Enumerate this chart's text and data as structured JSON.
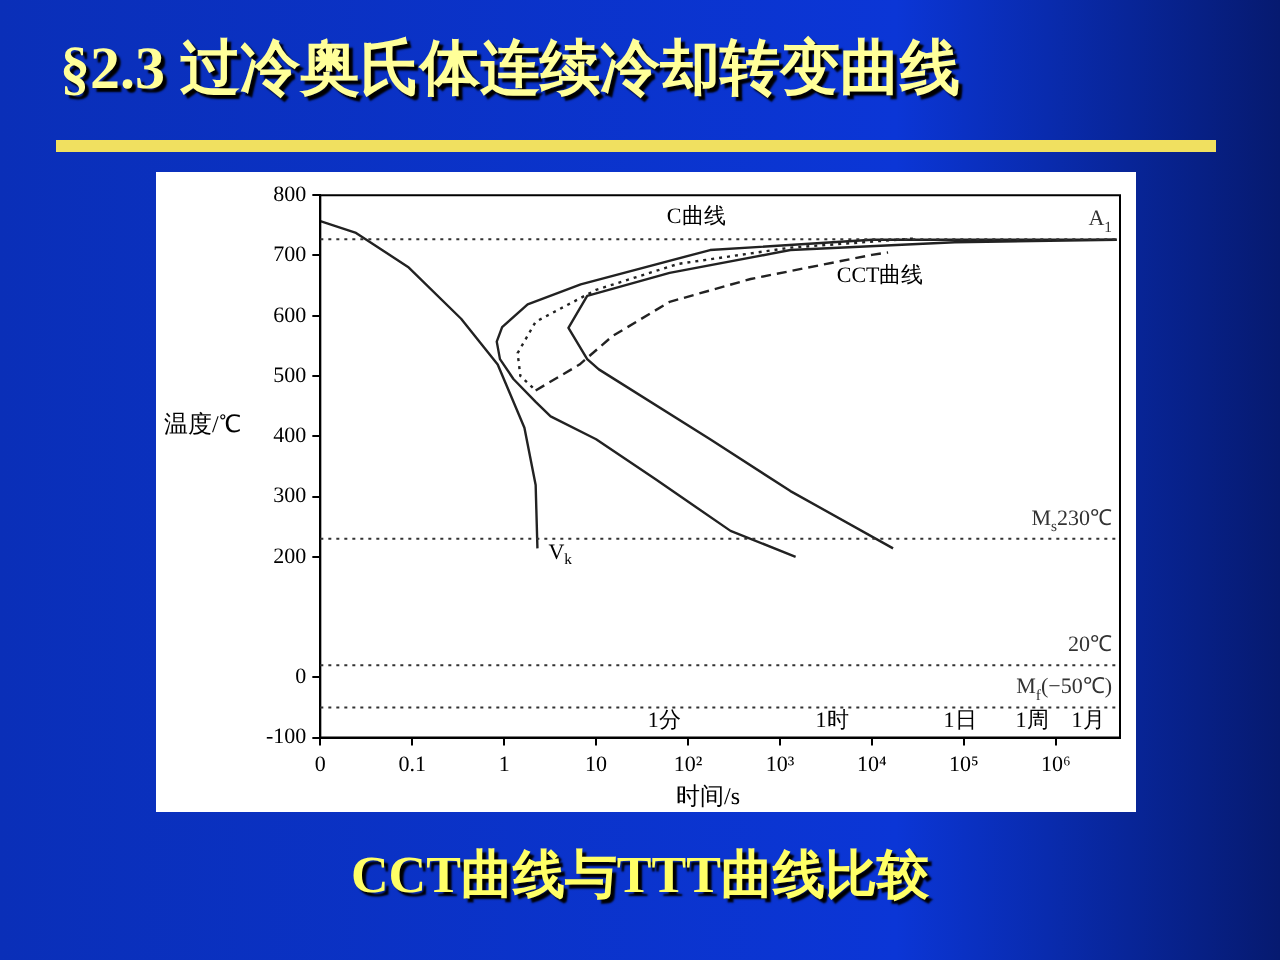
{
  "chart_data": {
    "type": "line",
    "title": "§2.3 过冷奥氏体连续冷却转变曲线",
    "subtitle": "CCT曲线与TTT曲线比较",
    "xlabel": "时间/s",
    "ylabel": "温度/℃",
    "log": "x",
    "grid": false,
    "legend": false,
    "marker": "none",
    "xlim": [
      0.01,
      5000000
    ],
    "xticks": [
      {
        "value": 0.01,
        "label": "0"
      },
      0.1,
      1,
      10,
      {
        "value": 100,
        "label": "10²"
      },
      {
        "value": 1000,
        "label": "10³"
      },
      {
        "value": 10000,
        "label": "10⁴"
      },
      {
        "value": 100000,
        "label": "10⁵"
      },
      {
        "value": 1000000,
        "label": "10⁶"
      }
    ],
    "ylim": [
      -100,
      800
    ],
    "yticks": [
      -100,
      0,
      200,
      300,
      400,
      500,
      600,
      700,
      800
    ],
    "series": [
      {
        "color": "#222222",
        "line_style": "solid",
        "x": [
          4600000,
          10000,
          174,
          6.8,
          1.8,
          0.95,
          0.83,
          0.9,
          1.26,
          2.2,
          3.2,
          10,
          44,
          290,
          1480
        ],
        "values": [
          726,
          726,
          709,
          652,
          619,
          581,
          557,
          528,
          495,
          457,
          433,
          395,
          329,
          243,
          200
        ]
      },
      {
        "color": "#222222",
        "line_style": "solid",
        "x": [
          4600000,
          80000,
          1300,
          63,
          8,
          5,
          8,
          10.7,
          174,
          1300,
          17000
        ],
        "values": [
          726,
          722,
          709,
          671,
          633,
          580,
          528,
          511,
          395,
          309,
          214
        ]
      },
      {
        "color": "#222222",
        "line_style": "dotted",
        "x": [
          28000,
          1300,
          78,
          10,
          2.2,
          1.4,
          1.5,
          2.2
        ],
        "values": [
          728,
          713,
          686,
          643,
          590,
          538,
          500,
          476
        ]
      },
      {
        "color": "#222222",
        "line_style": "dashed",
        "x": [
          2.2,
          6.6,
          15,
          63,
          480,
          10000,
          15000
        ],
        "values": [
          476,
          519,
          566,
          623,
          661,
          701,
          705
        ]
      },
      {
        "color": "#222222",
        "line_style": "solid",
        "x": [
          0.01,
          0.024,
          0.09,
          0.34,
          0.85,
          1.66,
          2.2,
          2.3
        ],
        "values": [
          757,
          738,
          681,
          595,
          519,
          414,
          319,
          214
        ]
      }
    ],
    "ref_lines": [
      {
        "axis": "y",
        "value": 727,
        "label": "A$_{1}$",
        "color": "#333333",
        "line_style": "dotted"
      },
      {
        "axis": "y",
        "value": 230,
        "label": "M$_{s}$230℃",
        "color": "#333333",
        "line_style": "dotted"
      },
      {
        "axis": "y",
        "value": 20,
        "label": "20℃",
        "color": "#333333",
        "line_style": "dotted"
      },
      {
        "axis": "y",
        "value": -50,
        "label": "M$_{f}$(−50℃)",
        "color": "#333333",
        "line_style": "dotted"
      }
    ],
    "annotations": [
      "C曲线",
      "CCT曲线",
      "V$_{k}$",
      "1分",
      "1时",
      "1日",
      "1周",
      "1月"
    ]
  }
}
